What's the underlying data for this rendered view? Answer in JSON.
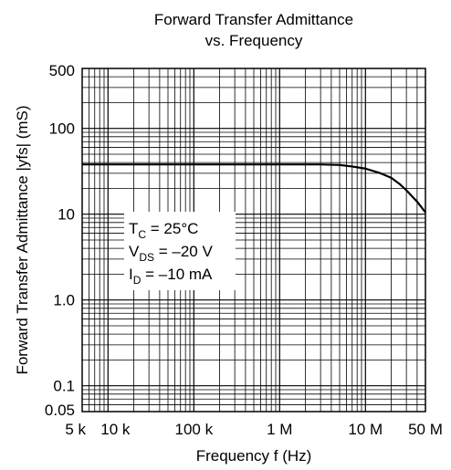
{
  "chart_data": {
    "type": "line",
    "title_line1": "Forward Transfer Admittance",
    "title_line2": "vs. Frequency",
    "xlabel": "Frequency  f  (Hz)",
    "ylabel": "Forward Transfer Admittance  |yfs|  (mS)",
    "x_scale": "log",
    "y_scale": "log",
    "xlim": [
      5000,
      50000000
    ],
    "ylim": [
      0.05,
      500
    ],
    "grid": true,
    "x_ticks": [
      {
        "value": 5000,
        "label": "5 k"
      },
      {
        "value": 10000,
        "label": "10 k"
      },
      {
        "value": 100000,
        "label": "100 k"
      },
      {
        "value": 1000000,
        "label": "1 M"
      },
      {
        "value": 10000000,
        "label": "10 M"
      },
      {
        "value": 50000000,
        "label": "50 M"
      }
    ],
    "y_ticks": [
      {
        "value": 0.05,
        "label": "0.05"
      },
      {
        "value": 0.1,
        "label": "0.1"
      },
      {
        "value": 1,
        "label": "1.0"
      },
      {
        "value": 10,
        "label": "10"
      },
      {
        "value": 100,
        "label": "100"
      },
      {
        "value": 500,
        "label": "500"
      }
    ],
    "annotation": {
      "tc": {
        "main": "T",
        "sub": "C",
        "rest": " = 25°C"
      },
      "vds": {
        "main": "V",
        "sub": "DS",
        "rest": " = –20 V"
      },
      "id": {
        "main": "I",
        "sub": "D",
        "rest": " = –10 mA"
      }
    },
    "series": [
      {
        "x": [
          5000,
          10000,
          100000,
          1000000,
          3000000,
          5000000,
          7000000,
          10000000,
          15000000,
          20000000,
          25000000,
          30000000,
          40000000,
          50000000
        ],
        "y": [
          38,
          38,
          38,
          38,
          38,
          37.5,
          36,
          34,
          30,
          26.5,
          22.5,
          19,
          14,
          10.5
        ]
      }
    ]
  }
}
